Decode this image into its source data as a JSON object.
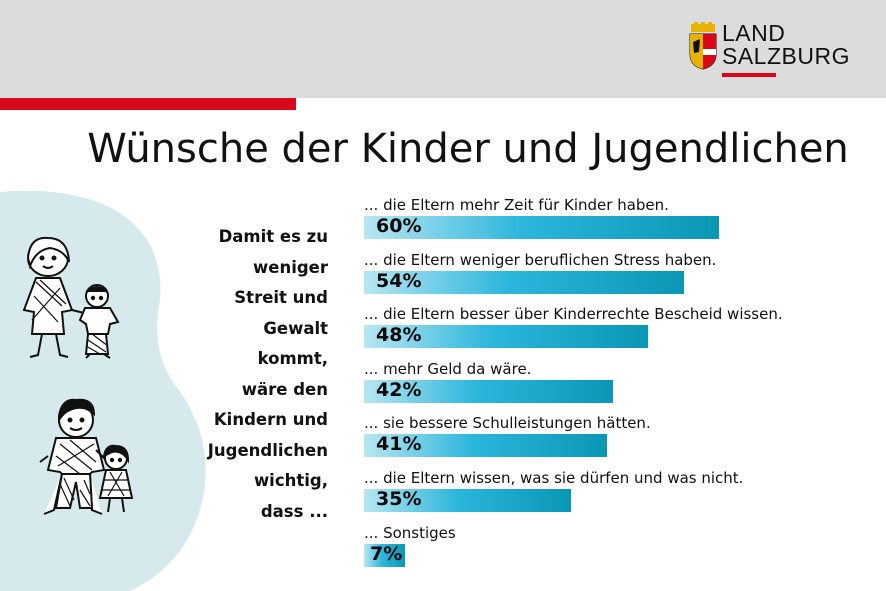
{
  "header": {
    "logo_line1": "LAND",
    "logo_line2": "SALZBURG",
    "brand_red": "#d8081a"
  },
  "title": "Wünsche der Kinder und Jugendlichen",
  "question_lines": [
    "Damit es zu",
    "weniger",
    "Streit und",
    "Gewalt",
    "kommt,",
    "wäre den",
    "Kindern und",
    "Jugendlichen",
    "wichtig,",
    "dass ..."
  ],
  "icons": [
    "land-salzburg-coat-of-arms-icon",
    "mother-and-child-icon",
    "father-and-daughter-icon"
  ],
  "chart_data": {
    "type": "bar",
    "orientation": "horizontal",
    "title": "Wünsche der Kinder und Jugendlichen",
    "unit": "%",
    "xlim": [
      0,
      100
    ],
    "grid": false,
    "bar_color": "#1aa9cf",
    "categories": [
      "... die Eltern mehr Zeit für Kinder haben.",
      "... die Eltern weniger beruflichen Stress haben.",
      "... die Eltern besser über Kinderrechte Bescheid wissen.",
      "... mehr Geld da wäre.",
      "... sie bessere Schulleistungen hätten.",
      "... die Eltern wissen, was sie dürfen und was nicht.",
      "... Sonstiges"
    ],
    "values": [
      60,
      54,
      48,
      42,
      41,
      35,
      7
    ],
    "value_labels": [
      "60%",
      "54%",
      "48%",
      "42%",
      "41%",
      "35%",
      "7%"
    ]
  }
}
